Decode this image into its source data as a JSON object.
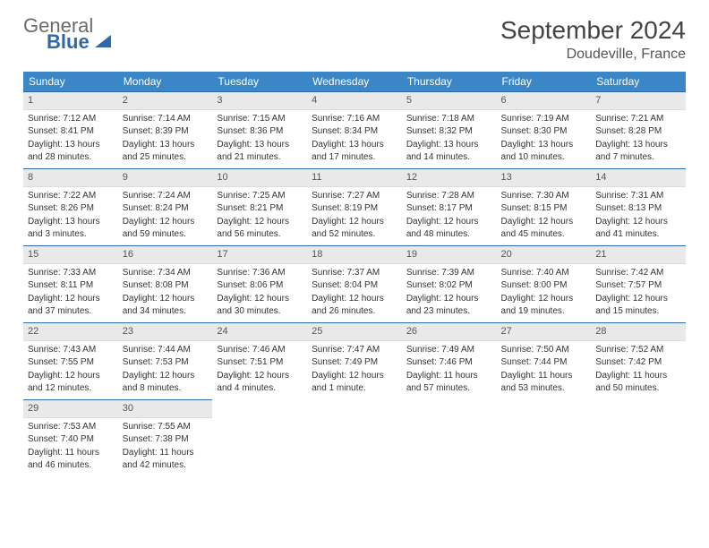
{
  "brand": {
    "part1": "General",
    "part2": "Blue"
  },
  "title": "September 2024",
  "location": "Doudeville, France",
  "colors": {
    "header_bg": "#3b86c6",
    "border": "#2f6aa8",
    "daynum_bg": "#e9e9e9",
    "text": "#333333"
  },
  "weekdays": [
    "Sunday",
    "Monday",
    "Tuesday",
    "Wednesday",
    "Thursday",
    "Friday",
    "Saturday"
  ],
  "weeks": [
    [
      {
        "n": "1",
        "sr": "Sunrise: 7:12 AM",
        "ss": "Sunset: 8:41 PM",
        "d1": "Daylight: 13 hours",
        "d2": "and 28 minutes."
      },
      {
        "n": "2",
        "sr": "Sunrise: 7:14 AM",
        "ss": "Sunset: 8:39 PM",
        "d1": "Daylight: 13 hours",
        "d2": "and 25 minutes."
      },
      {
        "n": "3",
        "sr": "Sunrise: 7:15 AM",
        "ss": "Sunset: 8:36 PM",
        "d1": "Daylight: 13 hours",
        "d2": "and 21 minutes."
      },
      {
        "n": "4",
        "sr": "Sunrise: 7:16 AM",
        "ss": "Sunset: 8:34 PM",
        "d1": "Daylight: 13 hours",
        "d2": "and 17 minutes."
      },
      {
        "n": "5",
        "sr": "Sunrise: 7:18 AM",
        "ss": "Sunset: 8:32 PM",
        "d1": "Daylight: 13 hours",
        "d2": "and 14 minutes."
      },
      {
        "n": "6",
        "sr": "Sunrise: 7:19 AM",
        "ss": "Sunset: 8:30 PM",
        "d1": "Daylight: 13 hours",
        "d2": "and 10 minutes."
      },
      {
        "n": "7",
        "sr": "Sunrise: 7:21 AM",
        "ss": "Sunset: 8:28 PM",
        "d1": "Daylight: 13 hours",
        "d2": "and 7 minutes."
      }
    ],
    [
      {
        "n": "8",
        "sr": "Sunrise: 7:22 AM",
        "ss": "Sunset: 8:26 PM",
        "d1": "Daylight: 13 hours",
        "d2": "and 3 minutes."
      },
      {
        "n": "9",
        "sr": "Sunrise: 7:24 AM",
        "ss": "Sunset: 8:24 PM",
        "d1": "Daylight: 12 hours",
        "d2": "and 59 minutes."
      },
      {
        "n": "10",
        "sr": "Sunrise: 7:25 AM",
        "ss": "Sunset: 8:21 PM",
        "d1": "Daylight: 12 hours",
        "d2": "and 56 minutes."
      },
      {
        "n": "11",
        "sr": "Sunrise: 7:27 AM",
        "ss": "Sunset: 8:19 PM",
        "d1": "Daylight: 12 hours",
        "d2": "and 52 minutes."
      },
      {
        "n": "12",
        "sr": "Sunrise: 7:28 AM",
        "ss": "Sunset: 8:17 PM",
        "d1": "Daylight: 12 hours",
        "d2": "and 48 minutes."
      },
      {
        "n": "13",
        "sr": "Sunrise: 7:30 AM",
        "ss": "Sunset: 8:15 PM",
        "d1": "Daylight: 12 hours",
        "d2": "and 45 minutes."
      },
      {
        "n": "14",
        "sr": "Sunrise: 7:31 AM",
        "ss": "Sunset: 8:13 PM",
        "d1": "Daylight: 12 hours",
        "d2": "and 41 minutes."
      }
    ],
    [
      {
        "n": "15",
        "sr": "Sunrise: 7:33 AM",
        "ss": "Sunset: 8:11 PM",
        "d1": "Daylight: 12 hours",
        "d2": "and 37 minutes."
      },
      {
        "n": "16",
        "sr": "Sunrise: 7:34 AM",
        "ss": "Sunset: 8:08 PM",
        "d1": "Daylight: 12 hours",
        "d2": "and 34 minutes."
      },
      {
        "n": "17",
        "sr": "Sunrise: 7:36 AM",
        "ss": "Sunset: 8:06 PM",
        "d1": "Daylight: 12 hours",
        "d2": "and 30 minutes."
      },
      {
        "n": "18",
        "sr": "Sunrise: 7:37 AM",
        "ss": "Sunset: 8:04 PM",
        "d1": "Daylight: 12 hours",
        "d2": "and 26 minutes."
      },
      {
        "n": "19",
        "sr": "Sunrise: 7:39 AM",
        "ss": "Sunset: 8:02 PM",
        "d1": "Daylight: 12 hours",
        "d2": "and 23 minutes."
      },
      {
        "n": "20",
        "sr": "Sunrise: 7:40 AM",
        "ss": "Sunset: 8:00 PM",
        "d1": "Daylight: 12 hours",
        "d2": "and 19 minutes."
      },
      {
        "n": "21",
        "sr": "Sunrise: 7:42 AM",
        "ss": "Sunset: 7:57 PM",
        "d1": "Daylight: 12 hours",
        "d2": "and 15 minutes."
      }
    ],
    [
      {
        "n": "22",
        "sr": "Sunrise: 7:43 AM",
        "ss": "Sunset: 7:55 PM",
        "d1": "Daylight: 12 hours",
        "d2": "and 12 minutes."
      },
      {
        "n": "23",
        "sr": "Sunrise: 7:44 AM",
        "ss": "Sunset: 7:53 PM",
        "d1": "Daylight: 12 hours",
        "d2": "and 8 minutes."
      },
      {
        "n": "24",
        "sr": "Sunrise: 7:46 AM",
        "ss": "Sunset: 7:51 PM",
        "d1": "Daylight: 12 hours",
        "d2": "and 4 minutes."
      },
      {
        "n": "25",
        "sr": "Sunrise: 7:47 AM",
        "ss": "Sunset: 7:49 PM",
        "d1": "Daylight: 12 hours",
        "d2": "and 1 minute."
      },
      {
        "n": "26",
        "sr": "Sunrise: 7:49 AM",
        "ss": "Sunset: 7:46 PM",
        "d1": "Daylight: 11 hours",
        "d2": "and 57 minutes."
      },
      {
        "n": "27",
        "sr": "Sunrise: 7:50 AM",
        "ss": "Sunset: 7:44 PM",
        "d1": "Daylight: 11 hours",
        "d2": "and 53 minutes."
      },
      {
        "n": "28",
        "sr": "Sunrise: 7:52 AM",
        "ss": "Sunset: 7:42 PM",
        "d1": "Daylight: 11 hours",
        "d2": "and 50 minutes."
      }
    ],
    [
      {
        "n": "29",
        "sr": "Sunrise: 7:53 AM",
        "ss": "Sunset: 7:40 PM",
        "d1": "Daylight: 11 hours",
        "d2": "and 46 minutes."
      },
      {
        "n": "30",
        "sr": "Sunrise: 7:55 AM",
        "ss": "Sunset: 7:38 PM",
        "d1": "Daylight: 11 hours",
        "d2": "and 42 minutes."
      },
      null,
      null,
      null,
      null,
      null
    ]
  ]
}
